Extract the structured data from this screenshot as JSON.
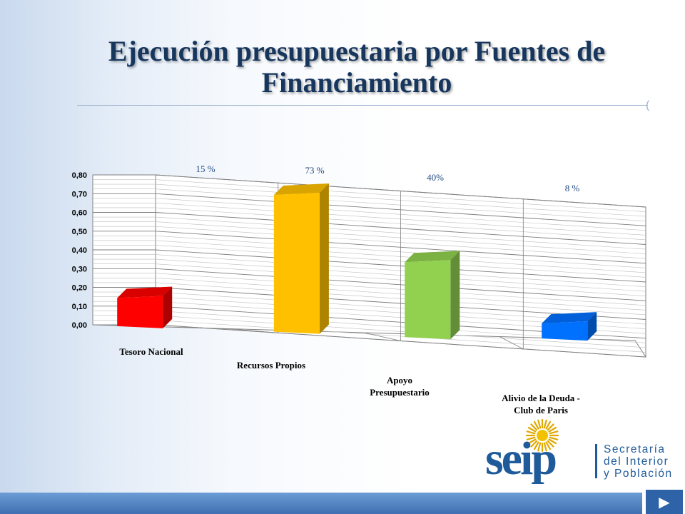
{
  "slide": {
    "title_line1": "Ejecución presupuestaria por Fuentes de",
    "title_line2": "Financiamiento"
  },
  "logo": {
    "wordmark": "seip",
    "line1": "Secretaría",
    "line2": "del Interior",
    "line3": "y Población"
  },
  "colors": {
    "title": "#17365d",
    "axis_text": "#000000",
    "data_label": "#1f497d"
  },
  "chart_data": {
    "type": "bar",
    "title": "",
    "xlabel": "",
    "ylabel": "",
    "categories": [
      "Tesoro Nacional",
      "Recursos Propios",
      "Apoyo Presupuestario",
      "Alivio de la Deuda - Club de Paris"
    ],
    "category_lines": [
      [
        "Tesoro Nacional"
      ],
      [
        "Recursos Propios"
      ],
      [
        "Apoyo",
        "Presupuestario"
      ],
      [
        "Alivio de la Deuda -",
        "Club de Paris"
      ]
    ],
    "values": [
      0.15,
      0.73,
      0.4,
      0.08
    ],
    "data_labels": [
      "15 %",
      "73 %",
      "40%",
      "8 %"
    ],
    "bar_colors": [
      "#ff0000",
      "#ffc000",
      "#92d050",
      "#0070ff"
    ],
    "ylim": [
      0,
      0.8
    ],
    "yticks": [
      "0,00",
      "0,10",
      "0,20",
      "0,30",
      "0,40",
      "0,50",
      "0,60",
      "0,70",
      "0,80"
    ],
    "grid": true,
    "legend": "none",
    "three_d": true
  }
}
